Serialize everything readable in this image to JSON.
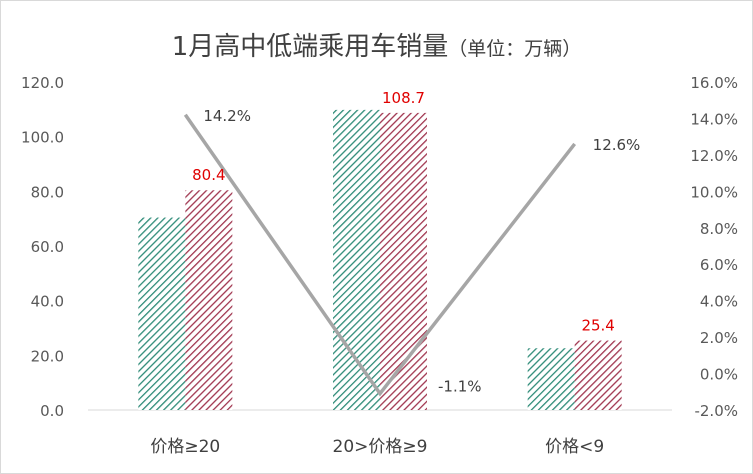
{
  "chart_data": {
    "type": "bar",
    "title": "1月高中低端乘用车销量",
    "subtitle": "（单位：万辆）",
    "categories": [
      "价格≥20",
      "20>价格≥9",
      "价格<9"
    ],
    "series": [
      {
        "values": [
          70.4,
          109.8,
          22.6
        ],
        "color": "#2e8b78",
        "pattern": "diagonal-stripes"
      },
      {
        "values": [
          80.4,
          108.7,
          25.4
        ],
        "color": "#a0354f",
        "pattern": "diagonal-stripes"
      }
    ],
    "bar_labels": [
      "80.4",
      "108.7",
      "25.4"
    ],
    "line_series": {
      "values": [
        14.2,
        -1.1,
        12.6
      ],
      "color": "#a6a6a6",
      "axis": "right"
    },
    "line_labels": [
      "14.2%",
      "-1.1%",
      "12.6%"
    ],
    "ylim": [
      0,
      120
    ],
    "y_ticks": [
      "0.0",
      "20.0",
      "40.0",
      "60.0",
      "80.0",
      "100.0",
      "120.0"
    ],
    "y2lim": [
      -2.0,
      16.0
    ],
    "y2_ticks": [
      "-2.0%",
      "0.0%",
      "2.0%",
      "4.0%",
      "6.0%",
      "8.0%",
      "10.0%",
      "12.0%",
      "14.0%",
      "16.0%"
    ],
    "grid": false,
    "legend": "none"
  }
}
